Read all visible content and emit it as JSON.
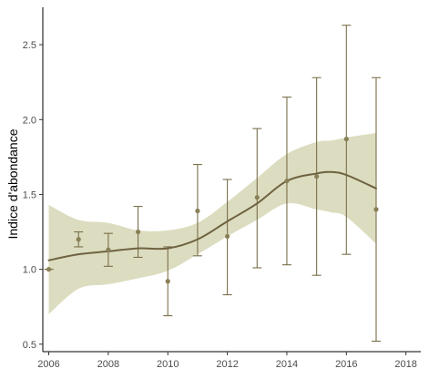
{
  "chart_data": {
    "type": "scatter",
    "title": "",
    "xlabel": "",
    "ylabel": "Indice d'abondance",
    "xlim": [
      2005.8,
      2018.5
    ],
    "ylim": [
      0.45,
      2.75
    ],
    "x_ticks": [
      2006,
      2008,
      2010,
      2012,
      2014,
      2016,
      2018
    ],
    "y_ticks": [
      0.5,
      1.0,
      1.5,
      2.0,
      2.5
    ],
    "grid": false,
    "legend": "none",
    "colors": {
      "points": "#8a8057",
      "errorbars": "#7a6f4a",
      "smooth_line": "#6e6240",
      "ribbon": "#dcdcc0",
      "axis": "#000000"
    },
    "series": [
      {
        "kind": "points-with-errorbars",
        "x": [
          2006,
          2007,
          2008,
          2009,
          2010,
          2011,
          2012,
          2013,
          2014,
          2015,
          2016,
          2017
        ],
        "y": [
          1.0,
          1.2,
          1.13,
          1.25,
          0.92,
          1.39,
          1.22,
          1.48,
          1.59,
          1.62,
          1.87,
          1.4
        ],
        "lower": [
          1.0,
          1.15,
          1.02,
          1.08,
          0.69,
          1.09,
          0.83,
          1.01,
          1.03,
          0.96,
          1.1,
          0.52
        ],
        "upper": [
          1.0,
          1.25,
          1.24,
          1.42,
          1.15,
          1.7,
          1.6,
          1.94,
          2.15,
          2.28,
          2.63,
          2.28
        ]
      },
      {
        "kind": "smooth",
        "x": [
          2006,
          2007,
          2008,
          2009,
          2010,
          2011,
          2012,
          2013,
          2014,
          2015,
          2015.5,
          2016,
          2017
        ],
        "y": [
          1.06,
          1.1,
          1.12,
          1.14,
          1.14,
          1.2,
          1.32,
          1.44,
          1.59,
          1.64,
          1.65,
          1.63,
          1.54
        ],
        "lower": [
          0.7,
          0.87,
          0.9,
          0.94,
          0.99,
          1.1,
          1.22,
          1.33,
          1.44,
          1.4,
          1.38,
          1.35,
          1.17
        ],
        "upper": [
          1.43,
          1.33,
          1.31,
          1.26,
          1.26,
          1.31,
          1.45,
          1.61,
          1.77,
          1.85,
          1.86,
          1.88,
          1.91
        ]
      }
    ]
  }
}
